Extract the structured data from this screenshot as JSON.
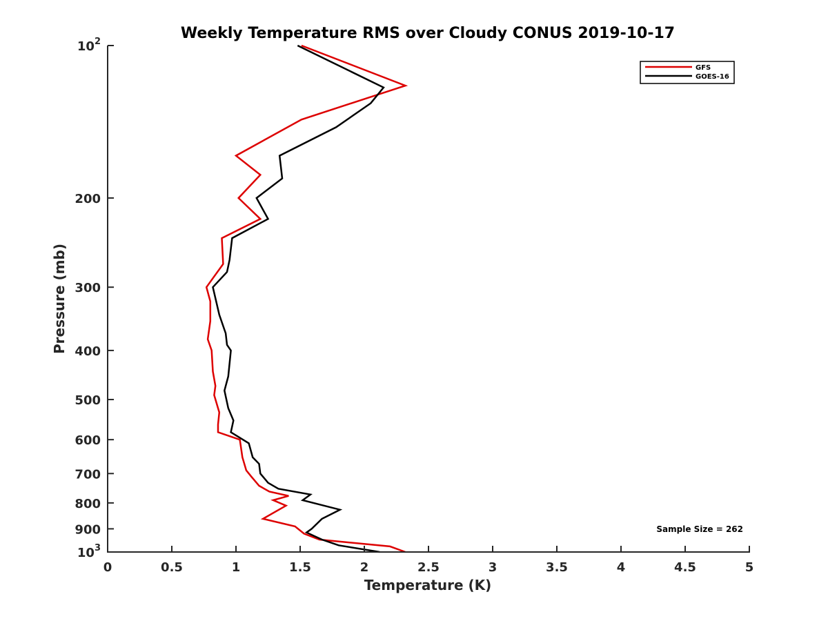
{
  "chart_data": {
    "type": "line",
    "title": "Weekly Temperature RMS over Cloudy CONUS 2019-10-17",
    "xlabel": "Temperature (K)",
    "ylabel": "Pressure (mb)",
    "xlim": [
      0,
      5
    ],
    "ylim": [
      100,
      1000
    ],
    "y_scale": "log",
    "y_reversed": true,
    "grid": false,
    "legend_position": "top-right",
    "x_ticks": [
      {
        "value": 0,
        "label": "0"
      },
      {
        "value": 0.5,
        "label": "0.5"
      },
      {
        "value": 1,
        "label": "1"
      },
      {
        "value": 1.5,
        "label": "1.5"
      },
      {
        "value": 2,
        "label": "2"
      },
      {
        "value": 2.5,
        "label": "2.5"
      },
      {
        "value": 3,
        "label": "3"
      },
      {
        "value": 3.5,
        "label": "3.5"
      },
      {
        "value": 4,
        "label": "4"
      },
      {
        "value": 4.5,
        "label": "4.5"
      },
      {
        "value": 5,
        "label": "5"
      }
    ],
    "y_ticks": [
      {
        "value": 100,
        "label": "10",
        "sup": "2"
      },
      {
        "value": 200,
        "label": "200",
        "sup": ""
      },
      {
        "value": 300,
        "label": "300",
        "sup": ""
      },
      {
        "value": 400,
        "label": "400",
        "sup": ""
      },
      {
        "value": 500,
        "label": "500",
        "sup": ""
      },
      {
        "value": 600,
        "label": "600",
        "sup": ""
      },
      {
        "value": 700,
        "label": "700",
        "sup": ""
      },
      {
        "value": 800,
        "label": "800",
        "sup": ""
      },
      {
        "value": 900,
        "label": "900",
        "sup": ""
      },
      {
        "value": 1000,
        "label": "10",
        "sup": "3"
      }
    ],
    "series": [
      {
        "name": "GFS",
        "color": "#dd0000",
        "points": [
          {
            "x": 1.51,
            "y": 100
          },
          {
            "x": 2.32,
            "y": 120
          },
          {
            "x": 1.51,
            "y": 140
          },
          {
            "x": 1.0,
            "y": 165
          },
          {
            "x": 1.19,
            "y": 180
          },
          {
            "x": 1.02,
            "y": 200
          },
          {
            "x": 1.19,
            "y": 220
          },
          {
            "x": 0.89,
            "y": 240
          },
          {
            "x": 0.9,
            "y": 270
          },
          {
            "x": 0.77,
            "y": 300
          },
          {
            "x": 0.8,
            "y": 320
          },
          {
            "x": 0.8,
            "y": 350
          },
          {
            "x": 0.78,
            "y": 380
          },
          {
            "x": 0.81,
            "y": 400
          },
          {
            "x": 0.82,
            "y": 440
          },
          {
            "x": 0.84,
            "y": 470
          },
          {
            "x": 0.83,
            "y": 490
          },
          {
            "x": 0.87,
            "y": 530
          },
          {
            "x": 0.86,
            "y": 560
          },
          {
            "x": 0.86,
            "y": 580
          },
          {
            "x": 1.03,
            "y": 600
          },
          {
            "x": 1.05,
            "y": 650
          },
          {
            "x": 1.08,
            "y": 690
          },
          {
            "x": 1.12,
            "y": 710
          },
          {
            "x": 1.18,
            "y": 740
          },
          {
            "x": 1.26,
            "y": 760
          },
          {
            "x": 1.41,
            "y": 775
          },
          {
            "x": 1.29,
            "y": 790
          },
          {
            "x": 1.39,
            "y": 810
          },
          {
            "x": 1.21,
            "y": 860
          },
          {
            "x": 1.46,
            "y": 890
          },
          {
            "x": 1.53,
            "y": 920
          },
          {
            "x": 1.65,
            "y": 945
          },
          {
            "x": 2.2,
            "y": 975
          },
          {
            "x": 2.32,
            "y": 1000
          }
        ]
      },
      {
        "name": "GOES-16",
        "color": "#000000",
        "points": [
          {
            "x": 1.48,
            "y": 100
          },
          {
            "x": 2.15,
            "y": 121
          },
          {
            "x": 2.05,
            "y": 130
          },
          {
            "x": 1.78,
            "y": 145
          },
          {
            "x": 1.34,
            "y": 165
          },
          {
            "x": 1.36,
            "y": 183
          },
          {
            "x": 1.16,
            "y": 200
          },
          {
            "x": 1.25,
            "y": 220
          },
          {
            "x": 0.97,
            "y": 240
          },
          {
            "x": 0.95,
            "y": 265
          },
          {
            "x": 0.93,
            "y": 280
          },
          {
            "x": 0.82,
            "y": 300
          },
          {
            "x": 0.87,
            "y": 340
          },
          {
            "x": 0.92,
            "y": 370
          },
          {
            "x": 0.93,
            "y": 390
          },
          {
            "x": 0.96,
            "y": 400
          },
          {
            "x": 0.94,
            "y": 450
          },
          {
            "x": 0.91,
            "y": 480
          },
          {
            "x": 0.94,
            "y": 520
          },
          {
            "x": 0.98,
            "y": 550
          },
          {
            "x": 0.96,
            "y": 580
          },
          {
            "x": 1.1,
            "y": 610
          },
          {
            "x": 1.13,
            "y": 650
          },
          {
            "x": 1.18,
            "y": 670
          },
          {
            "x": 1.19,
            "y": 700
          },
          {
            "x": 1.25,
            "y": 730
          },
          {
            "x": 1.33,
            "y": 750
          },
          {
            "x": 1.58,
            "y": 770
          },
          {
            "x": 1.52,
            "y": 790
          },
          {
            "x": 1.81,
            "y": 825
          },
          {
            "x": 1.67,
            "y": 860
          },
          {
            "x": 1.59,
            "y": 900
          },
          {
            "x": 1.55,
            "y": 915
          },
          {
            "x": 1.67,
            "y": 945
          },
          {
            "x": 1.8,
            "y": 970
          },
          {
            "x": 2.12,
            "y": 1000
          }
        ]
      }
    ],
    "annotations": [
      {
        "text": "Sample Size = 262",
        "position": "bottom-right"
      }
    ]
  }
}
